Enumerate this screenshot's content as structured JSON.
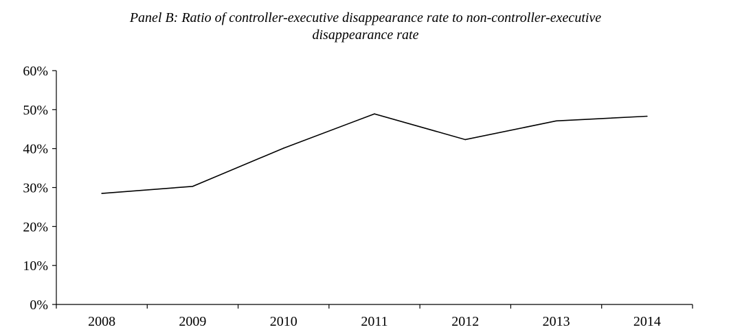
{
  "chart_data": {
    "type": "line",
    "title_lines": [
      "Panel B: Ratio of controller-executive disappearance rate to non-controller-executive",
      "disappearance rate"
    ],
    "xlabel": "",
    "ylabel": "",
    "categories": [
      "2008",
      "2009",
      "2010",
      "2011",
      "2012",
      "2013",
      "2014"
    ],
    "series": [
      {
        "values": [
          0.285,
          0.303,
          0.401,
          0.489,
          0.423,
          0.471,
          0.483
        ]
      }
    ],
    "ylim": [
      0,
      0.6
    ],
    "yticks": [
      0,
      0.1,
      0.2,
      0.3,
      0.4,
      0.5,
      0.6
    ],
    "ytick_labels": [
      "0%",
      "10%",
      "20%",
      "30%",
      "40%",
      "50%",
      "60%"
    ],
    "grid": false,
    "legend": "none",
    "line_color": "#000000"
  }
}
